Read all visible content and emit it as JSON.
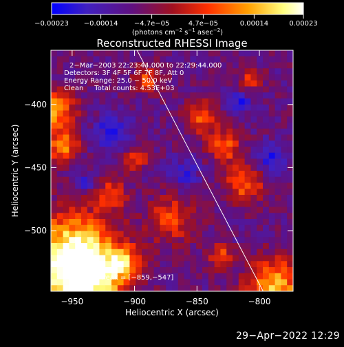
{
  "chart_data": {
    "type": "heatmap",
    "title": "Reconstructed RHESSI Image",
    "xlabel": "Heliocentric X (arcsec)",
    "ylabel": "Heliocentric Y (arcsec)",
    "xlim": [
      -967,
      -773
    ],
    "ylim": [
      -548,
      -357
    ],
    "x_ticks": [
      {
        "value": -950,
        "label": "−950"
      },
      {
        "value": -900,
        "label": "−900"
      },
      {
        "value": -850,
        "label": "−850"
      },
      {
        "value": -800,
        "label": "−800"
      }
    ],
    "y_ticks": [
      {
        "value": -400,
        "label": "−400"
      },
      {
        "value": -450,
        "label": "−450"
      },
      {
        "value": -500,
        "label": "−500"
      }
    ],
    "colorbar": {
      "min": -0.00023,
      "max": 0.00023,
      "ticks": [
        {
          "value": -0.00023,
          "label": "−0.00023"
        },
        {
          "value": -0.00014,
          "label": "−0.00014"
        },
        {
          "value": -4.7e-05,
          "label": "−4.7e−05"
        },
        {
          "value": 4.7e-05,
          "label": "4.7e−05"
        },
        {
          "value": 0.00014,
          "label": "0.00014"
        },
        {
          "value": 0.00023,
          "label": "0.00023"
        }
      ],
      "unit_label": "(photons cm",
      "unit_sup1": "−2",
      "unit_mid": " s",
      "unit_sup2": "−1",
      "unit_mid2": " asec",
      "unit_sup3": "−2",
      "unit_end": ")",
      "colors": [
        "#0000ff",
        "#4020c0",
        "#601080",
        "#a01020",
        "#ff3000",
        "#ffa000",
        "#ffff80",
        "#ffffff"
      ]
    },
    "annotations": [
      "2−Mar−2003 22:23:44.000 to 22:29:44.000",
      "Detectors: 3F 4F 5F 6F 7F 8F, Att 0",
      "Energy Range: 25.0 − 50.0 keV",
      "Clean     Total counts: 4.53E+03"
    ],
    "peak_label": "Position of Peak = [−859,−547]",
    "limb_line": [
      {
        "x": -898,
        "y": -357
      },
      {
        "x": -797,
        "y": -548
      }
    ]
  },
  "timestamp": "29−Apr−2022 12:29"
}
